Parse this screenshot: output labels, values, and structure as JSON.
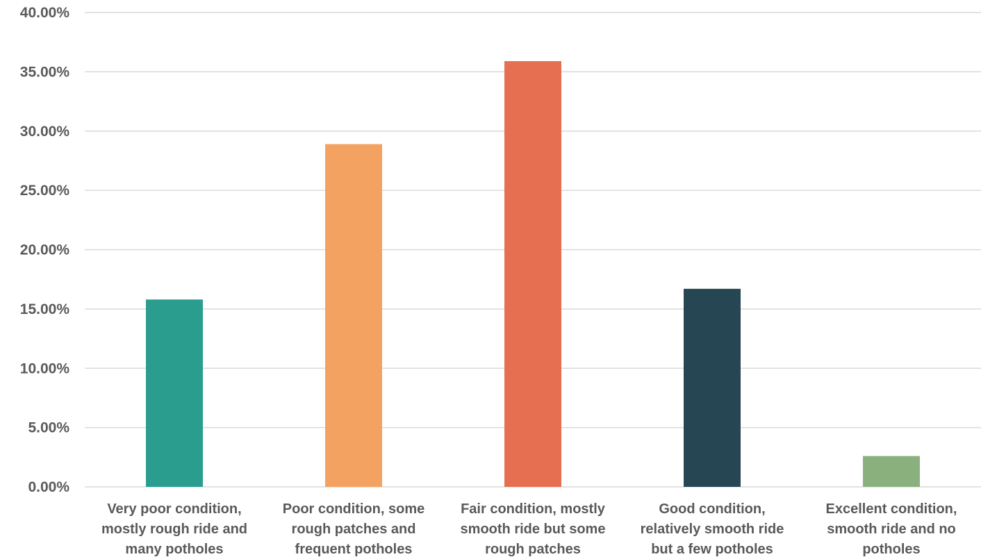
{
  "chart_data": {
    "type": "bar",
    "categories": [
      [
        "Very poor condition,",
        "mostly rough ride and",
        "many potholes"
      ],
      [
        "Poor condition, some",
        "rough patches and",
        "frequent potholes"
      ],
      [
        "Fair condition, mostly",
        "smooth ride but some",
        "rough patches"
      ],
      [
        "Good condition,",
        "relatively smooth ride",
        "but a few potholes"
      ],
      [
        "Excellent condition,",
        "smooth ride and no",
        "potholes"
      ]
    ],
    "values": [
      15.8,
      28.9,
      35.9,
      16.7,
      2.6
    ],
    "colors": [
      "#2a9d8f",
      "#f4a261",
      "#e76f51",
      "#264653",
      "#8ab17d"
    ],
    "title": "",
    "xlabel": "",
    "ylabel": "",
    "ylim": [
      0,
      40
    ],
    "yticks": [
      "0.00%",
      "5.00%",
      "10.00%",
      "15.00%",
      "20.00%",
      "25.00%",
      "30.00%",
      "35.00%",
      "40.00%"
    ],
    "ytick_values": [
      0,
      5,
      10,
      15,
      20,
      25,
      30,
      35,
      40
    ],
    "grid": true,
    "legend": "none"
  }
}
